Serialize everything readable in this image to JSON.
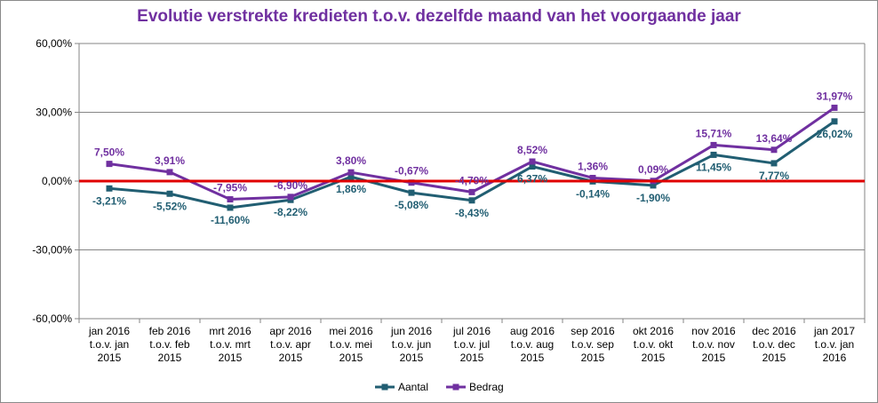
{
  "chart_data": {
    "type": "line",
    "title": "Evolutie verstrekte kredieten t.o.v. dezelfde maand van het voorgaande jaar",
    "categories": [
      [
        "jan 2016",
        "t.o.v. jan",
        "2015"
      ],
      [
        "feb 2016",
        "t.o.v. feb",
        "2015"
      ],
      [
        "mrt 2016",
        "t.o.v. mrt",
        "2015"
      ],
      [
        "apr 2016",
        "t.o.v. apr",
        "2015"
      ],
      [
        "mei 2016",
        "t.o.v. mei",
        "2015"
      ],
      [
        "jun 2016",
        "t.o.v. jun",
        "2015"
      ],
      [
        "jul 2016",
        "t.o.v. jul",
        "2015"
      ],
      [
        "aug 2016",
        "t.o.v. aug",
        "2015"
      ],
      [
        "sep 2016",
        "t.o.v. sep",
        "2015"
      ],
      [
        "okt 2016",
        "t.o.v. okt",
        "2015"
      ],
      [
        "nov 2016",
        "t.o.v. nov",
        "2015"
      ],
      [
        "dec 2016",
        "t.o.v. dec",
        "2015"
      ],
      [
        "jan 2017",
        "t.o.v. jan",
        "2016"
      ]
    ],
    "ylim": [
      -60,
      60
    ],
    "yticks": [
      60,
      30,
      0,
      -30,
      -60
    ],
    "ytick_labels": [
      "60,00%",
      "30,00%",
      "0,00%",
      "-30,00%",
      "-60,00%"
    ],
    "reference_line": {
      "value": 0,
      "color": "#e00000"
    },
    "legend_position": "bottom-center",
    "series": [
      {
        "name": "Aantal",
        "color": "#215e72",
        "values": [
          -3.21,
          -5.52,
          -11.6,
          -8.22,
          1.86,
          -5.08,
          -8.43,
          6.37,
          -0.14,
          -1.9,
          11.45,
          7.77,
          26.02
        ],
        "labels": [
          "-3,21%",
          "-5,52%",
          "-11,60%",
          "-8,22%",
          "1,86%",
          "-5,08%",
          "-8,43%",
          "6,37%",
          "-0,14%",
          "-1,90%",
          "11,45%",
          "7,77%",
          "26,02%"
        ]
      },
      {
        "name": "Bedrag",
        "color": "#7030a0",
        "values": [
          7.5,
          3.91,
          -7.95,
          -6.9,
          3.8,
          -0.67,
          -4.79,
          8.52,
          1.36,
          0.09,
          15.71,
          13.64,
          31.97
        ],
        "labels": [
          "7,50%",
          "3,91%",
          "-7,95%",
          "-6,90%",
          "3,80%",
          "-0,67%",
          "-4,79%",
          "8,52%",
          "1,36%",
          "0,09%",
          "15,71%",
          "13,64%",
          "31,97%"
        ]
      }
    ]
  }
}
